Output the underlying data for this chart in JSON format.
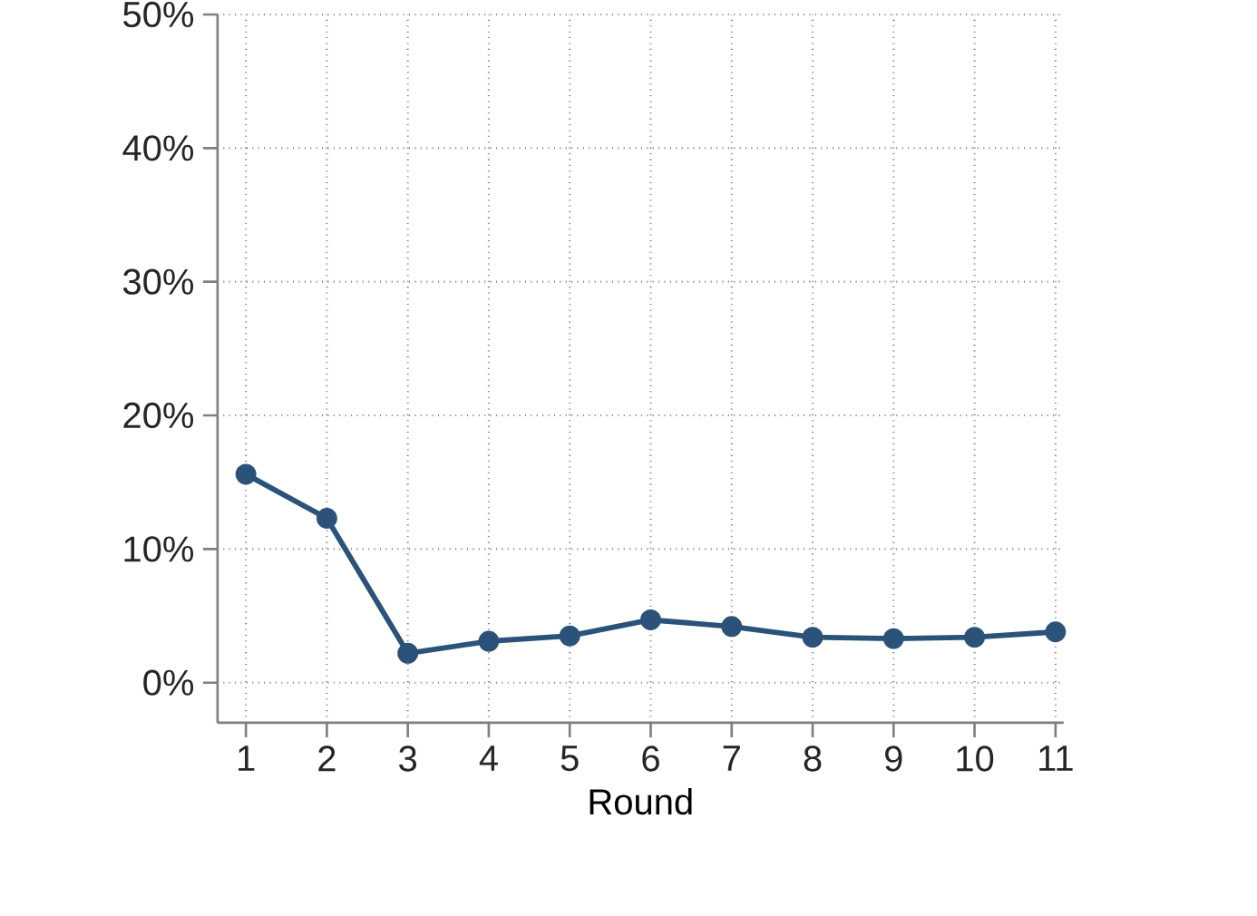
{
  "chart_data": {
    "type": "line",
    "xlabel": "Round",
    "x": [
      1,
      2,
      3,
      4,
      5,
      6,
      7,
      8,
      9,
      10,
      11
    ],
    "series": [
      {
        "color": "#2b5278",
        "values": [
          15.6,
          12.3,
          2.2,
          3.1,
          3.5,
          4.7,
          4.2,
          3.4,
          3.3,
          3.4,
          3.8
        ]
      }
    ],
    "xlim": [
      0.65,
      11.1
    ],
    "xticks": [
      1,
      2,
      3,
      4,
      5,
      6,
      7,
      8,
      9,
      10,
      11
    ],
    "ylim": [
      -3,
      50
    ],
    "yticks": [
      {
        "value": 0,
        "label": "0%"
      },
      {
        "value": 10,
        "label": "10%"
      },
      {
        "value": 20,
        "label": "20%"
      },
      {
        "value": 30,
        "label": "30%"
      },
      {
        "value": 40,
        "label": "40%"
      },
      {
        "value": 50,
        "label": "50%"
      }
    ],
    "grid": true,
    "marker": "circle",
    "line_style": "solid"
  }
}
